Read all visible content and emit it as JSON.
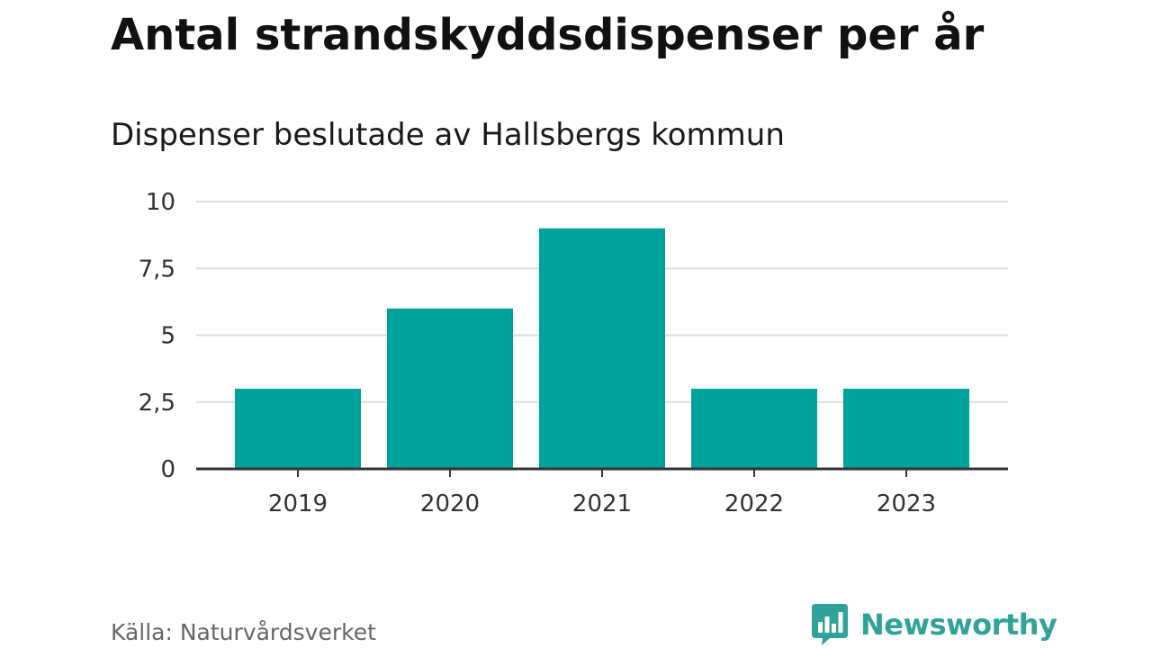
{
  "header": {
    "title": "Antal strandskyddsdispenser per år",
    "subtitle": "Dispenser beslutade av Hallsbergs kommun"
  },
  "footer": {
    "source": "Källa: Naturvårdsverket",
    "brand_name": "Newsworthy",
    "brand_icon": "bar-chart-speech-bubble-icon"
  },
  "colors": {
    "bar": "#00a39a",
    "grid": "#dddddd",
    "axis": "#333333",
    "brand": "#2fa39a"
  },
  "chart_data": {
    "type": "bar",
    "title": "Antal strandskyddsdispenser per år",
    "subtitle": "Dispenser beslutade av Hallsbergs kommun",
    "categories": [
      "2019",
      "2020",
      "2021",
      "2022",
      "2023"
    ],
    "values": [
      3,
      6,
      9,
      3,
      3
    ],
    "xlabel": "",
    "ylabel": "",
    "ylim": [
      0,
      10
    ],
    "yticks": [
      0,
      2.5,
      5,
      7.5,
      10
    ],
    "ytick_labels": [
      "0",
      "2,5",
      "5",
      "7,5",
      "10"
    ],
    "grid": true,
    "legend": "none"
  }
}
